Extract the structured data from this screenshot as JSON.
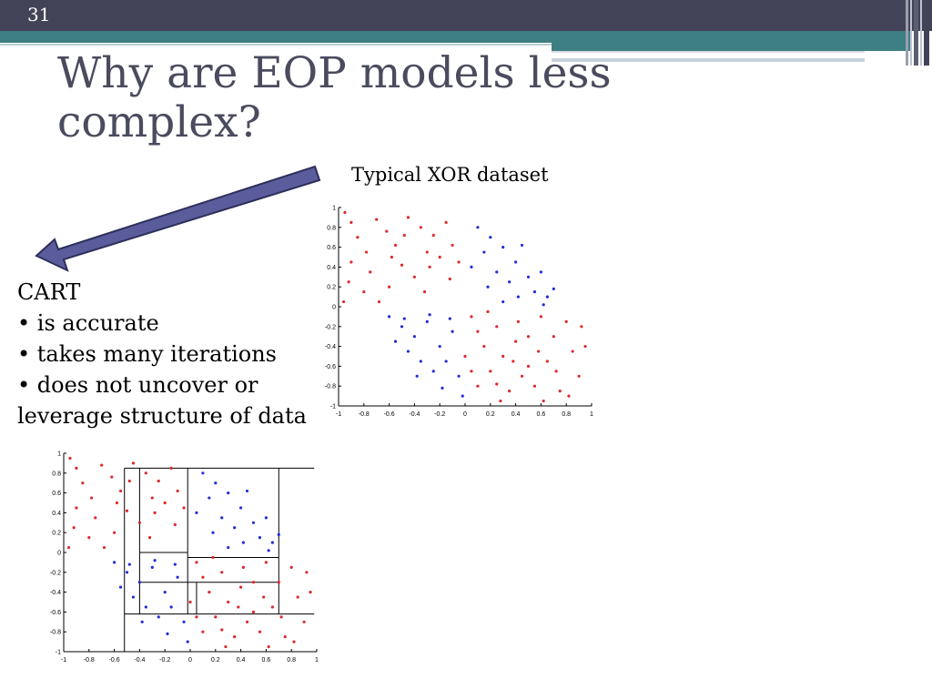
{
  "slide": {
    "number": "31",
    "title": "Why are EOP models less complex?",
    "xor_caption": "Typical XOR dataset",
    "cart": {
      "heading": "CART",
      "bullets": [
        "• is accurate",
        "• takes many iterations",
        "• does not uncover or",
        "leverage structure of data"
      ]
    }
  },
  "colors": {
    "top_bar": "#434358",
    "accent_teal": "#3e7f83",
    "title": "#4a4b5e",
    "arrow_fill": "#5a5c9c",
    "class_red": "#e0282c",
    "class_blue": "#1f2fd8"
  },
  "chart_data": [
    {
      "type": "scatter",
      "title": "",
      "xlim": [
        -1,
        1
      ],
      "ylim": [
        -1,
        1
      ],
      "xticks": [
        "-1",
        "-0.8",
        "-0.6",
        "-0.4",
        "-0.2",
        "0",
        "0.2",
        "0.4",
        "0.6",
        "0.8",
        "1"
      ],
      "yticks": [
        "1",
        "0.8",
        "0.6",
        "0.4",
        "0.2",
        "0",
        "-0.2",
        "-0.4",
        "-0.6",
        "-0.8",
        "-1"
      ],
      "series": [
        {
          "color": "#e0282c",
          "points": [
            [
              -0.95,
              0.95
            ],
            [
              -0.9,
              0.85
            ],
            [
              -0.85,
              0.7
            ],
            [
              -0.78,
              0.55
            ],
            [
              -0.9,
              0.45
            ],
            [
              -0.7,
              0.88
            ],
            [
              -0.62,
              0.76
            ],
            [
              -0.75,
              0.35
            ],
            [
              -0.6,
              0.2
            ],
            [
              -0.92,
              0.25
            ],
            [
              -0.68,
              0.05
            ],
            [
              -0.55,
              0.62
            ],
            [
              -0.45,
              0.9
            ],
            [
              -0.35,
              0.8
            ],
            [
              -0.25,
              0.72
            ],
            [
              -0.3,
              0.55
            ],
            [
              -0.15,
              0.85
            ],
            [
              -0.5,
              0.42
            ],
            [
              -0.4,
              0.3
            ],
            [
              -0.2,
              0.5
            ],
            [
              -0.1,
              0.62
            ],
            [
              -0.05,
              0.45
            ],
            [
              -0.32,
              0.15
            ],
            [
              -0.12,
              0.28
            ],
            [
              -0.58,
              0.5
            ],
            [
              -0.8,
              0.15
            ],
            [
              -0.96,
              0.05
            ],
            [
              -0.48,
              0.72
            ],
            [
              -0.28,
              0.4
            ],
            [
              0.05,
              -0.1
            ],
            [
              0.1,
              -0.25
            ],
            [
              0.15,
              -0.4
            ],
            [
              0.25,
              -0.2
            ],
            [
              0.3,
              -0.5
            ],
            [
              0.4,
              -0.35
            ],
            [
              0.5,
              -0.6
            ],
            [
              0.6,
              -0.1
            ],
            [
              0.7,
              -0.3
            ],
            [
              0.8,
              -0.15
            ],
            [
              0.85,
              -0.45
            ],
            [
              0.9,
              -0.7
            ],
            [
              0.65,
              -0.55
            ],
            [
              0.55,
              -0.8
            ],
            [
              0.45,
              -0.7
            ],
            [
              0.35,
              -0.85
            ],
            [
              0.2,
              -0.65
            ],
            [
              0.1,
              -0.8
            ],
            [
              0.0,
              -0.5
            ],
            [
              0.75,
              -0.85
            ],
            [
              0.92,
              -0.2
            ],
            [
              0.62,
              -0.95
            ],
            [
              0.28,
              -0.95
            ],
            [
              0.42,
              -0.15
            ],
            [
              0.5,
              -0.3
            ],
            [
              0.18,
              -0.05
            ],
            [
              0.72,
              -0.65
            ],
            [
              0.82,
              -0.9
            ],
            [
              0.38,
              -0.55
            ],
            [
              0.95,
              -0.4
            ],
            [
              0.05,
              -0.65
            ],
            [
              0.58,
              -0.45
            ],
            [
              0.25,
              -0.78
            ]
          ]
        },
        {
          "color": "#1f2fd8",
          "points": [
            [
              0.1,
              0.8
            ],
            [
              0.2,
              0.7
            ],
            [
              0.15,
              0.55
            ],
            [
              0.3,
              0.6
            ],
            [
              0.4,
              0.45
            ],
            [
              0.35,
              0.25
            ],
            [
              0.5,
              0.3
            ],
            [
              0.55,
              0.15
            ],
            [
              0.65,
              0.1
            ],
            [
              0.45,
              0.62
            ],
            [
              0.25,
              0.35
            ],
            [
              0.6,
              0.35
            ],
            [
              0.7,
              0.18
            ],
            [
              0.05,
              0.4
            ],
            [
              0.18,
              0.2
            ],
            [
              0.42,
              0.1
            ],
            [
              0.3,
              0.05
            ],
            [
              0.62,
              0.02
            ],
            [
              -0.6,
              -0.1
            ],
            [
              -0.5,
              -0.2
            ],
            [
              -0.4,
              -0.3
            ],
            [
              -0.3,
              -0.15
            ],
            [
              -0.2,
              -0.4
            ],
            [
              -0.1,
              -0.25
            ],
            [
              -0.35,
              -0.55
            ],
            [
              -0.25,
              -0.65
            ],
            [
              -0.15,
              -0.55
            ],
            [
              -0.45,
              -0.45
            ],
            [
              -0.05,
              -0.7
            ],
            [
              -0.55,
              -0.35
            ],
            [
              -0.28,
              -0.08
            ],
            [
              -0.12,
              -0.12
            ],
            [
              -0.38,
              -0.7
            ],
            [
              -0.18,
              -0.82
            ],
            [
              -0.02,
              -0.9
            ],
            [
              -0.48,
              -0.12
            ]
          ]
        }
      ]
    },
    {
      "type": "scatter",
      "title": "",
      "xlim": [
        -1,
        1
      ],
      "ylim": [
        -1,
        1
      ],
      "xticks": [
        "-1",
        "-0.8",
        "-0.6",
        "-0.4",
        "-0.2",
        "0",
        "0.2",
        "0.4",
        "0.6",
        "0.8",
        "1"
      ],
      "yticks": [
        "1",
        "0.8",
        "0.6",
        "0.4",
        "0.2",
        "0",
        "-0.2",
        "-0.4",
        "-0.6",
        "-0.8",
        "-1"
      ],
      "split_lines": {
        "vertical": [
          [
            -0.52,
            -1,
            0.85
          ],
          [
            -0.4,
            -0.62,
            0.85
          ],
          [
            -0.02,
            -0.62,
            0.85
          ],
          [
            0.7,
            -0.62,
            0.85
          ]
        ],
        "horizontal": [
          [
            0.85,
            -0.52,
            0.98
          ],
          [
            0.0,
            -0.4,
            -0.02
          ],
          [
            -0.05,
            -0.02,
            0.7
          ],
          [
            -0.3,
            -0.4,
            0.7
          ],
          [
            -0.62,
            -0.52,
            0.98
          ]
        ],
        "extra_vertical": [
          [
            0.05,
            -0.62,
            -0.3
          ]
        ]
      },
      "series": [
        {
          "color": "#e0282c",
          "points": [
            [
              -0.95,
              0.95
            ],
            [
              -0.9,
              0.85
            ],
            [
              -0.85,
              0.7
            ],
            [
              -0.78,
              0.55
            ],
            [
              -0.9,
              0.45
            ],
            [
              -0.7,
              0.88
            ],
            [
              -0.62,
              0.76
            ],
            [
              -0.75,
              0.35
            ],
            [
              -0.6,
              0.2
            ],
            [
              -0.92,
              0.25
            ],
            [
              -0.68,
              0.05
            ],
            [
              -0.55,
              0.62
            ],
            [
              -0.45,
              0.9
            ],
            [
              -0.35,
              0.8
            ],
            [
              -0.25,
              0.72
            ],
            [
              -0.3,
              0.55
            ],
            [
              -0.15,
              0.85
            ],
            [
              -0.5,
              0.42
            ],
            [
              -0.4,
              0.3
            ],
            [
              -0.2,
              0.5
            ],
            [
              -0.1,
              0.62
            ],
            [
              -0.05,
              0.45
            ],
            [
              -0.32,
              0.15
            ],
            [
              -0.12,
              0.28
            ],
            [
              -0.58,
              0.5
            ],
            [
              -0.8,
              0.15
            ],
            [
              -0.96,
              0.05
            ],
            [
              -0.48,
              0.72
            ],
            [
              -0.28,
              0.4
            ],
            [
              0.05,
              -0.1
            ],
            [
              0.1,
              -0.25
            ],
            [
              0.15,
              -0.4
            ],
            [
              0.25,
              -0.2
            ],
            [
              0.3,
              -0.5
            ],
            [
              0.4,
              -0.35
            ],
            [
              0.5,
              -0.6
            ],
            [
              0.6,
              -0.1
            ],
            [
              0.7,
              -0.3
            ],
            [
              0.8,
              -0.15
            ],
            [
              0.85,
              -0.45
            ],
            [
              0.9,
              -0.7
            ],
            [
              0.65,
              -0.55
            ],
            [
              0.55,
              -0.8
            ],
            [
              0.45,
              -0.7
            ],
            [
              0.35,
              -0.85
            ],
            [
              0.2,
              -0.65
            ],
            [
              0.1,
              -0.8
            ],
            [
              0.0,
              -0.5
            ],
            [
              0.75,
              -0.85
            ],
            [
              0.92,
              -0.2
            ],
            [
              0.62,
              -0.95
            ],
            [
              0.28,
              -0.95
            ],
            [
              0.42,
              -0.15
            ],
            [
              0.5,
              -0.3
            ],
            [
              0.18,
              -0.05
            ],
            [
              0.72,
              -0.65
            ],
            [
              0.82,
              -0.9
            ],
            [
              0.38,
              -0.55
            ],
            [
              0.95,
              -0.4
            ],
            [
              0.05,
              -0.65
            ],
            [
              0.58,
              -0.45
            ],
            [
              0.25,
              -0.78
            ]
          ]
        },
        {
          "color": "#1f2fd8",
          "points": [
            [
              0.1,
              0.8
            ],
            [
              0.2,
              0.7
            ],
            [
              0.15,
              0.55
            ],
            [
              0.3,
              0.6
            ],
            [
              0.4,
              0.45
            ],
            [
              0.35,
              0.25
            ],
            [
              0.5,
              0.3
            ],
            [
              0.55,
              0.15
            ],
            [
              0.65,
              0.1
            ],
            [
              0.45,
              0.62
            ],
            [
              0.25,
              0.35
            ],
            [
              0.6,
              0.35
            ],
            [
              0.7,
              0.18
            ],
            [
              0.05,
              0.4
            ],
            [
              0.18,
              0.2
            ],
            [
              0.42,
              0.1
            ],
            [
              0.3,
              0.05
            ],
            [
              0.62,
              0.02
            ],
            [
              -0.6,
              -0.1
            ],
            [
              -0.5,
              -0.2
            ],
            [
              -0.4,
              -0.3
            ],
            [
              -0.3,
              -0.15
            ],
            [
              -0.2,
              -0.4
            ],
            [
              -0.1,
              -0.25
            ],
            [
              -0.35,
              -0.55
            ],
            [
              -0.25,
              -0.65
            ],
            [
              -0.15,
              -0.55
            ],
            [
              -0.45,
              -0.45
            ],
            [
              -0.05,
              -0.7
            ],
            [
              -0.55,
              -0.35
            ],
            [
              -0.28,
              -0.08
            ],
            [
              -0.12,
              -0.12
            ],
            [
              -0.38,
              -0.7
            ],
            [
              -0.18,
              -0.82
            ],
            [
              -0.02,
              -0.9
            ],
            [
              -0.48,
              -0.12
            ]
          ]
        }
      ]
    }
  ]
}
